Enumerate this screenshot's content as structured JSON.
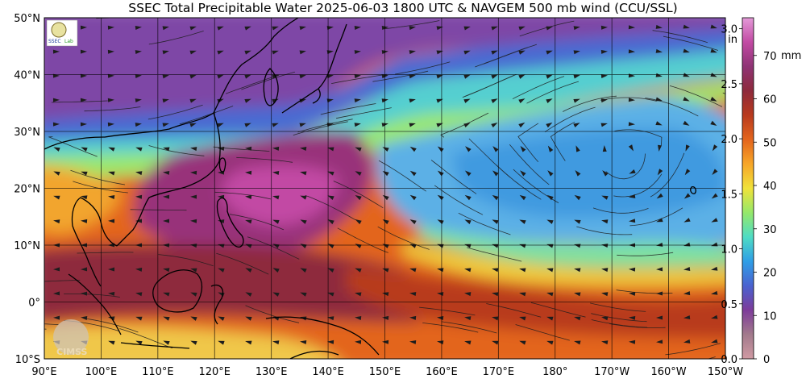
{
  "title": "SSEC Total Precipitable Water  2025-06-03 1800 UTC & NAVGEM 500 mb wind (CCU/SSL)",
  "watermark": "CIMSS",
  "logo": {
    "text": "SSEC",
    "subtext": "Lab"
  },
  "lat_labels": [
    "50°N",
    "40°N",
    "30°N",
    "20°N",
    "10°N",
    "0°",
    "10°S"
  ],
  "lon_labels": [
    "90°E",
    "100°E",
    "110°E",
    "120°E",
    "130°E",
    "140°E",
    "150°E",
    "160°E",
    "170°E",
    "180°",
    "170°W",
    "160°W",
    "150°W"
  ],
  "colorbar": {
    "inch_unit": "in",
    "mm_unit": "mm",
    "inch_ticks": [
      "3.0",
      "2.5",
      "2.0",
      "1.5",
      "1.0",
      "0.5",
      "0.0"
    ],
    "mm_ticks": [
      "70",
      "60",
      "50",
      "40",
      "30",
      "20",
      "10",
      "0"
    ],
    "colors": [
      "#d09aa3",
      "#a27a8c",
      "#7d3c9a",
      "#4a62d0",
      "#2f9ee6",
      "#4fdcc4",
      "#95e86a",
      "#f0e23a",
      "#f7a628",
      "#e3651d",
      "#b83a1e",
      "#8e2a3c",
      "#8f3475",
      "#c24aa4",
      "#e49ad8"
    ]
  },
  "map_colors": {
    "deep_moist": "#98337a",
    "moist": "#b3421f",
    "orange": "#e96d1c",
    "yellow": "#efcf3e",
    "green": "#94e36a",
    "cyan": "#5fd7c9",
    "blue": "#3f9ae0",
    "dry_blue": "#5a6fd0",
    "dry_purple": "#7e46a6"
  }
}
